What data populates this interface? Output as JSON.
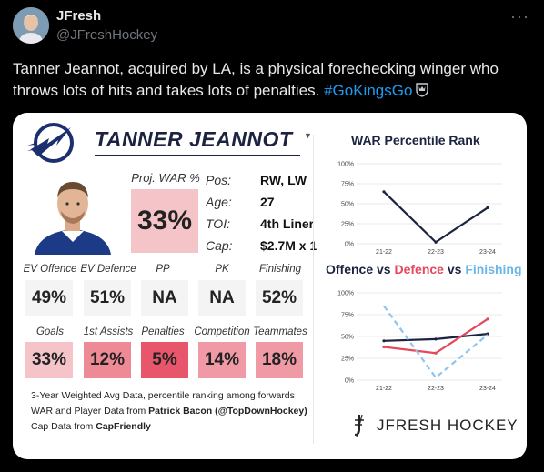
{
  "tweet": {
    "display_name": "JFresh",
    "handle": "@JFreshHockey",
    "text": "Tanner Jeannot, acquired by LA, is a physical forechecking winger who throws lots of hits and takes lots of penalties. ",
    "hashtag": "#GoKingsGo",
    "more_icon": "more-horizontal-icon"
  },
  "card": {
    "player_name": "TANNER JEANNOT",
    "projected_war_label": "Proj. WAR %",
    "projected_war_value": "33%",
    "info": [
      {
        "label": "Pos:",
        "value": "RW, LW"
      },
      {
        "label": "Age:",
        "value": "27"
      },
      {
        "label": "TOI:",
        "value": "4th Liner"
      },
      {
        "label": "Cap:",
        "value": "$2.7M x 1"
      }
    ],
    "row1": [
      {
        "label": "EV Offence",
        "value": "49%",
        "color": "#f4f4f4"
      },
      {
        "label": "EV Defence",
        "value": "51%",
        "color": "#f4f4f4"
      },
      {
        "label": "PP",
        "value": "NA",
        "color": "#f4f4f4"
      },
      {
        "label": "PK",
        "value": "NA",
        "color": "#f4f4f4"
      },
      {
        "label": "Finishing",
        "value": "52%",
        "color": "#f4f4f4"
      }
    ],
    "row2": [
      {
        "label": "Goals",
        "value": "33%",
        "color": "#f4c4c8"
      },
      {
        "label": "1st Assists",
        "value": "12%",
        "color": "#ee8996"
      },
      {
        "label": "Penalties",
        "value": "5%",
        "color": "#e8566b"
      },
      {
        "label": "Competition",
        "value": "14%",
        "color": "#f09aa5"
      },
      {
        "label": "Teammates",
        "value": "18%",
        "color": "#f09aa5"
      }
    ],
    "footnote_line1": "3-Year Weighted Avg Data, percentile ranking among forwards",
    "footnote_line2_prefix": "WAR and Player Data from ",
    "footnote_line2_bold": "Patrick Bacon (@TopDownHockey)",
    "footnote_line3_prefix": "Cap Data from ",
    "footnote_line3_bold": "CapFriendly",
    "brand": "JFRESH HOCKEY"
  },
  "chart_data": [
    {
      "type": "line",
      "title": "WAR Percentile Rank",
      "categories": [
        "21-22",
        "22-23",
        "23-24"
      ],
      "y_ticks": [
        "0%",
        "25%",
        "50%",
        "75%",
        "100%"
      ],
      "ylim": [
        0,
        100
      ],
      "series": [
        {
          "values": [
            65,
            2,
            45
          ],
          "color": "#1b2340",
          "dashed": false
        }
      ]
    },
    {
      "type": "line",
      "title_parts": [
        "Offence",
        " vs ",
        "Defence",
        " vs ",
        "Finishing"
      ],
      "categories": [
        "21-22",
        "22-23",
        "23-24"
      ],
      "y_ticks": [
        "0%",
        "25%",
        "50%",
        "75%",
        "100%"
      ],
      "ylim": [
        0,
        100
      ],
      "series": [
        {
          "name": "Offence",
          "values": [
            45,
            47,
            53
          ],
          "color": "#1b2340",
          "dashed": false
        },
        {
          "name": "Defence",
          "values": [
            38,
            31,
            70
          ],
          "color": "#e6475c",
          "dashed": false
        },
        {
          "name": "Finishing",
          "values": [
            85,
            3,
            52
          ],
          "color": "#8cc6ee",
          "dashed": true
        }
      ]
    }
  ]
}
